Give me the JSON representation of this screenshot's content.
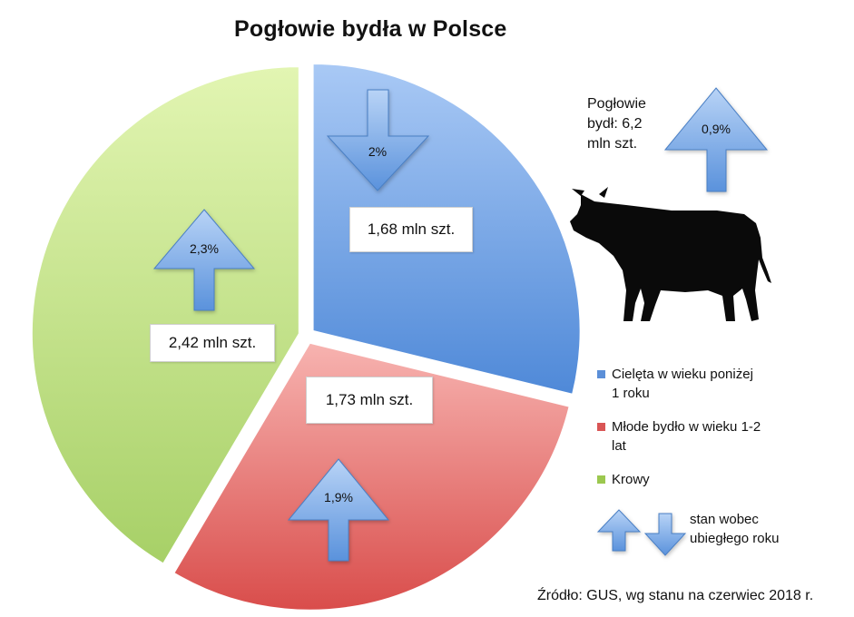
{
  "title": "Pogłowie bydła w Polsce",
  "chart_data": {
    "type": "pie",
    "title": "Pogłowie bydła w Polsce",
    "unit": "mln szt.",
    "slices": [
      {
        "name": "Cielęta w wieku poniżej 1 roku",
        "value": 1.68,
        "label": "1,68 mln szt.",
        "change": "2%",
        "direction": "down",
        "color": "#6b9fe0"
      },
      {
        "name": "Młode bydło w wieku 1-2 lat",
        "value": 1.73,
        "label": "1,73 mln szt.",
        "change": "1,9%",
        "direction": "up",
        "color": "#e06868"
      },
      {
        "name": "Krowy",
        "value": 2.42,
        "label": "2,42 mln szt.",
        "change": "2,3%",
        "direction": "up",
        "color": "#b5d86a"
      }
    ],
    "legend_position": "right"
  },
  "total": {
    "text": "Pogłowie bydł: 6,2 mln szt.",
    "change": "0,9%",
    "direction": "up"
  },
  "legend": {
    "items": [
      {
        "label": "Cielęta w wieku poniżej 1 roku",
        "color": "#5b8fd8"
      },
      {
        "label": "Młode bydło w wieku 1-2 lat",
        "color": "#d95555"
      },
      {
        "label": "Krowy",
        "color": "#9cc84f"
      }
    ],
    "arrows_text": "stan wobec ubiegłego roku"
  },
  "source": "Źródło: GUS, wg stanu na czerwiec 2018 r.",
  "icons": {
    "cow": "cow-silhouette-icon",
    "up": "arrow-up-icon",
    "down": "arrow-down-icon"
  }
}
